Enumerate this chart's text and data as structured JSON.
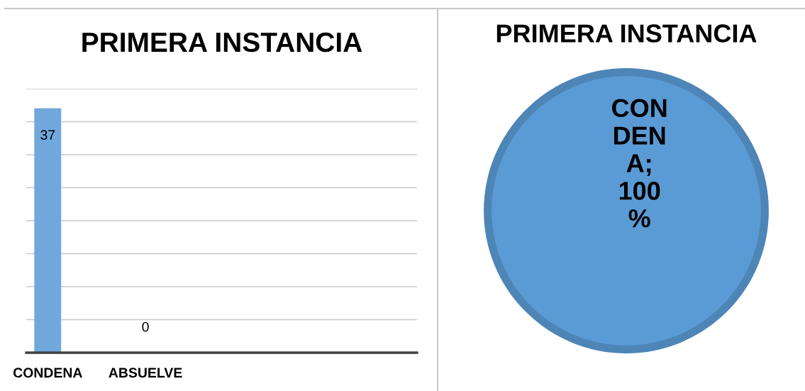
{
  "chart_data": [
    {
      "type": "bar",
      "title": "PRIMERA INSTANCIA",
      "categories": [
        "CONDENA",
        "ABSUELVE"
      ],
      "values": [
        37,
        0
      ],
      "color": "#70a8dc",
      "ylim": [
        0,
        40
      ],
      "yticks": [
        {
          "value": 0,
          "label": null
        },
        {
          "value": 5,
          "label": null
        },
        {
          "value": 10,
          "label": null
        },
        {
          "value": 15,
          "label": null
        },
        {
          "value": 20,
          "label": null
        },
        {
          "value": 25,
          "label": null
        },
        {
          "value": 30,
          "label": null
        },
        {
          "value": 35,
          "label": null
        },
        {
          "value": 40,
          "label": null
        }
      ],
      "grid": "y",
      "data_labels": true,
      "tick_labels": "x"
    },
    {
      "type": "pie",
      "title": "PRIMERA INSTANCIA",
      "categories": [
        null
      ],
      "values": [
        100
      ],
      "colors": [
        "#5b9bd5"
      ],
      "value_labels": [
        "CONDENA; 100%"
      ]
    }
  ]
}
